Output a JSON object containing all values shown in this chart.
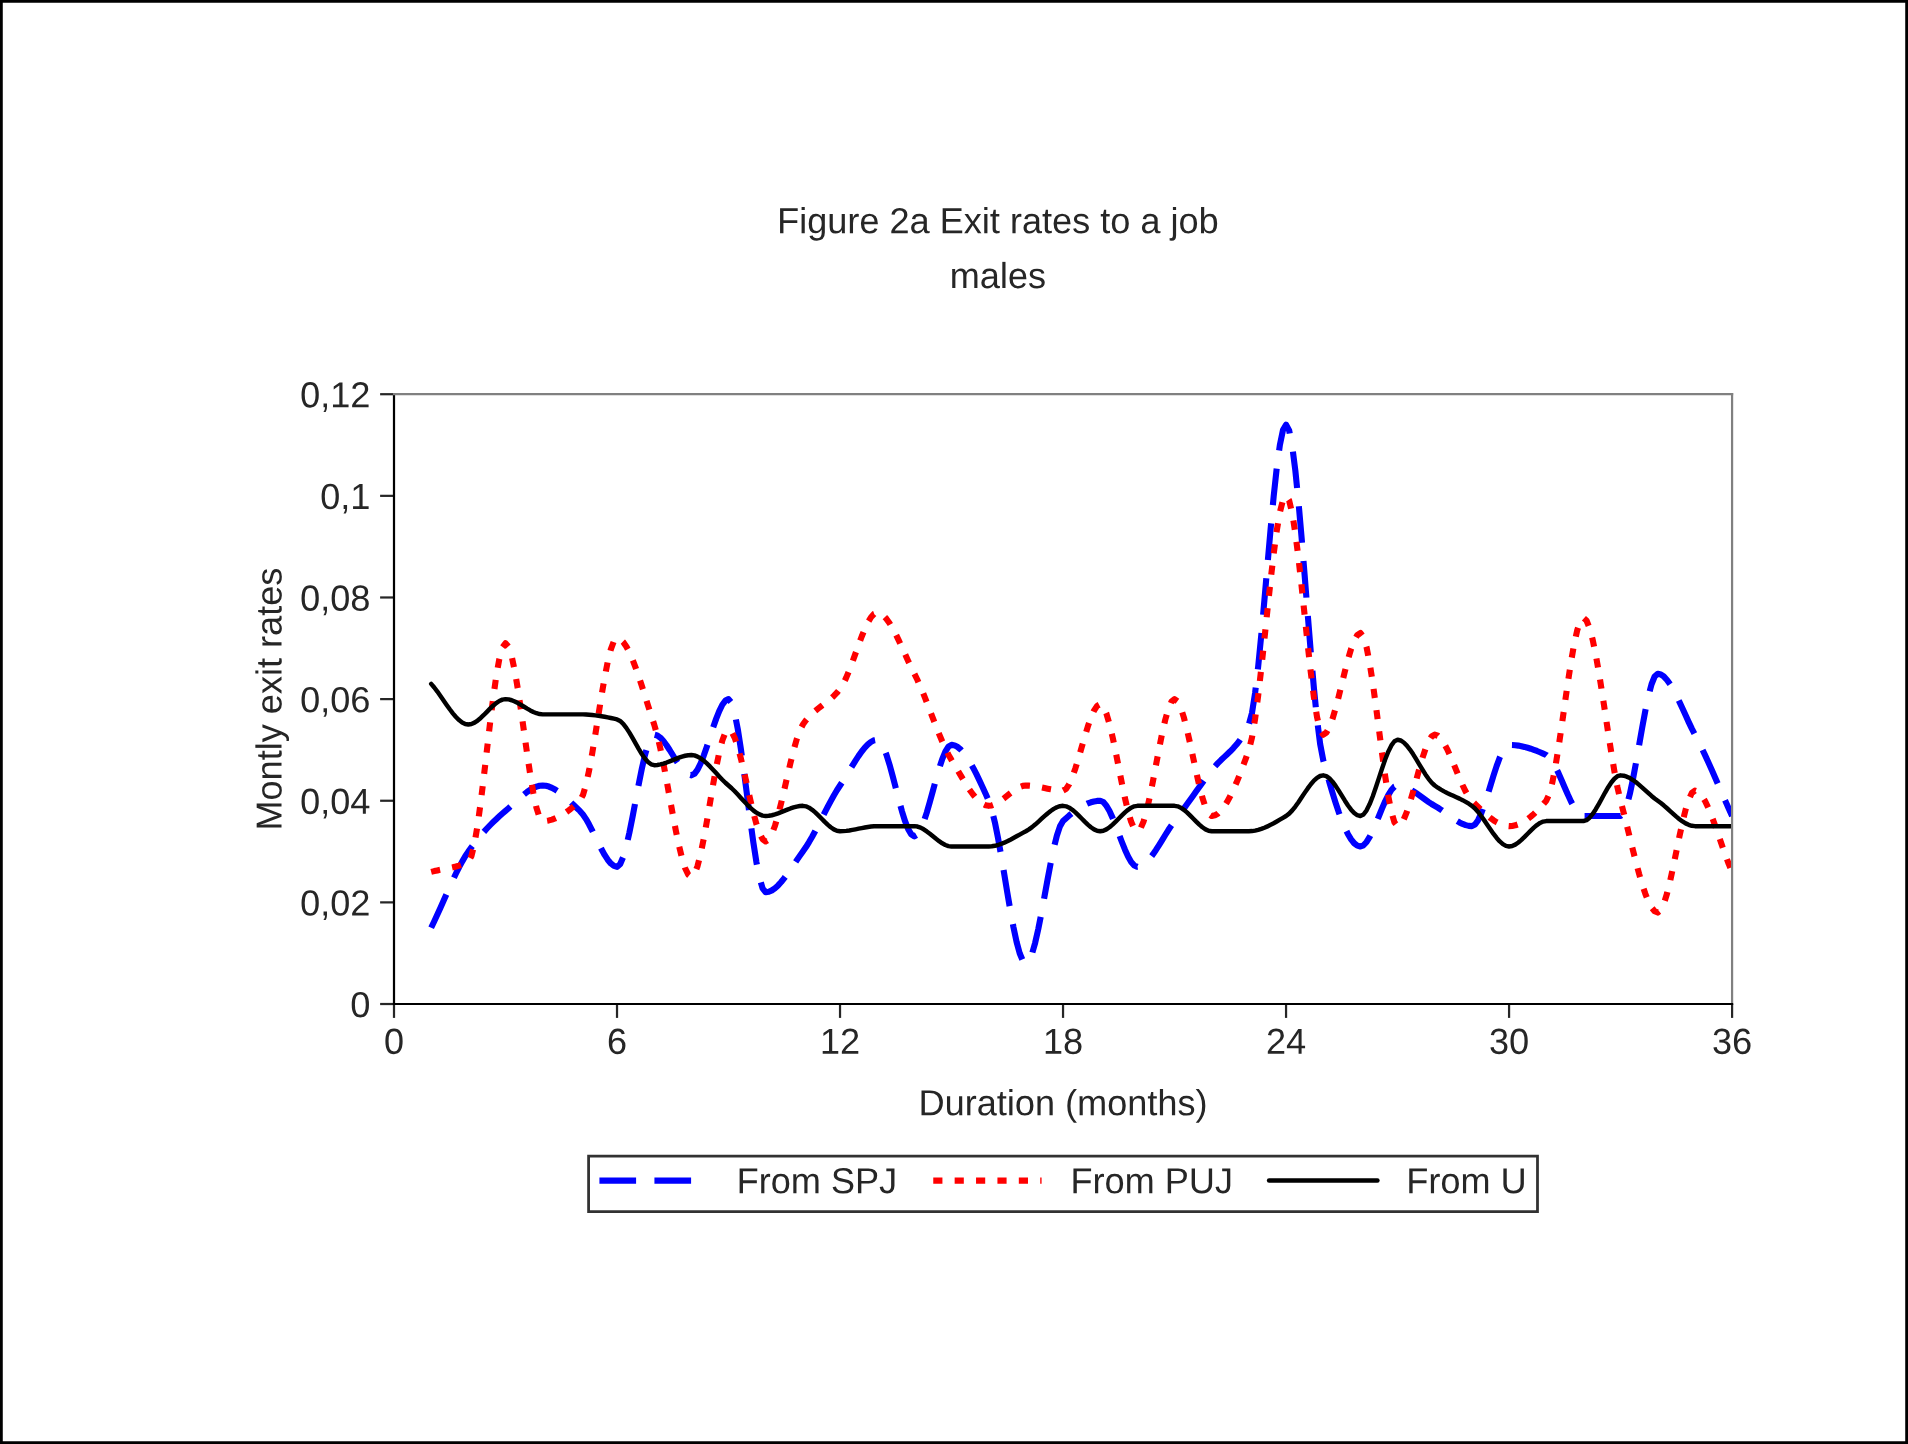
{
  "chart_data": {
    "type": "line",
    "title": "Figure 2a Exit rates to a job",
    "subtitle": "males",
    "xlabel": "Duration (months)",
    "ylabel": "Montly exit rates",
    "x": [
      1,
      2,
      3,
      4,
      5,
      6,
      7,
      8,
      9,
      10,
      11,
      12,
      13,
      14,
      15,
      16,
      17,
      18,
      19,
      20,
      21,
      22,
      23,
      24,
      25,
      26,
      27,
      28,
      29,
      30,
      31,
      32,
      33,
      34,
      35,
      36
    ],
    "series": [
      {
        "name": "From SPJ",
        "color": "#0000ff",
        "line_style": "dashed",
        "values": [
          0.015,
          0.03,
          0.038,
          0.043,
          0.038,
          0.027,
          0.053,
          0.045,
          0.06,
          0.022,
          0.03,
          0.043,
          0.052,
          0.033,
          0.051,
          0.04,
          0.008,
          0.036,
          0.04,
          0.027,
          0.036,
          0.046,
          0.055,
          0.114,
          0.048,
          0.031,
          0.043,
          0.039,
          0.035,
          0.051,
          0.049,
          0.037,
          0.037,
          0.065,
          0.053,
          0.037
        ]
      },
      {
        "name": "From PUJ",
        "color": "#ff0000",
        "line_style": "dotted",
        "values": [
          0.026,
          0.028,
          0.071,
          0.036,
          0.04,
          0.072,
          0.055,
          0.025,
          0.054,
          0.032,
          0.055,
          0.062,
          0.077,
          0.065,
          0.048,
          0.039,
          0.043,
          0.042,
          0.059,
          0.034,
          0.06,
          0.037,
          0.05,
          0.1,
          0.053,
          0.073,
          0.035,
          0.053,
          0.04,
          0.035,
          0.04,
          0.076,
          0.04,
          0.018,
          0.042,
          0.026
        ]
      },
      {
        "name": "From U",
        "color": "#000000",
        "line_style": "solid",
        "values": [
          0.063,
          0.055,
          0.06,
          0.057,
          0.057,
          0.056,
          0.047,
          0.049,
          0.043,
          0.037,
          0.039,
          0.034,
          0.035,
          0.035,
          0.031,
          0.031,
          0.034,
          0.039,
          0.034,
          0.039,
          0.039,
          0.034,
          0.034,
          0.037,
          0.045,
          0.037,
          0.052,
          0.043,
          0.039,
          0.031,
          0.036,
          0.036,
          0.045,
          0.04,
          0.035,
          0.035
        ]
      }
    ],
    "xlim": [
      0,
      36
    ],
    "xticks": [
      0,
      6,
      12,
      18,
      24,
      30,
      36
    ],
    "ylim": [
      0,
      0.12
    ],
    "yticks": [
      {
        "value": 0,
        "label": "0"
      },
      {
        "value": 0.02,
        "label": "0,02"
      },
      {
        "value": 0.04,
        "label": "0,04"
      },
      {
        "value": 0.06,
        "label": "0,06"
      },
      {
        "value": 0.08,
        "label": "0,08"
      },
      {
        "value": 0.1,
        "label": "0,1"
      },
      {
        "value": 0.12,
        "label": "0,12"
      }
    ],
    "grid": false,
    "legend": "bottom",
    "marker": "none"
  }
}
